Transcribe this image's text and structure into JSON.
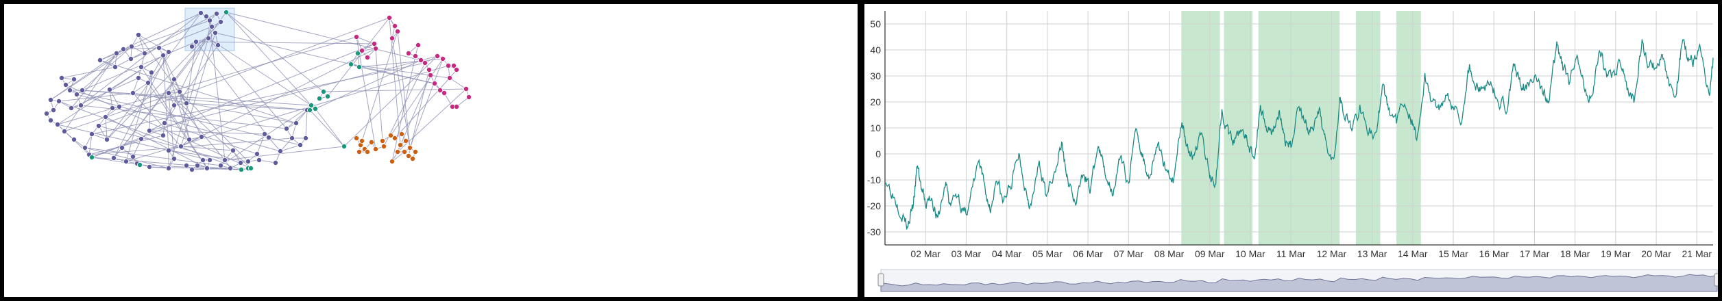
{
  "graph": {
    "colors": {
      "purple": "#5e5a9e",
      "green": "#16977a",
      "magenta": "#c8267f",
      "orange": "#cf5f0f",
      "edge": "#8c8fb3",
      "selection_fill": "#d6e8fb",
      "selection_stroke": "#a9c8ea"
    }
  },
  "chart_data": {
    "type": "line",
    "title": "",
    "xlabel": "",
    "ylabel": "",
    "ylim": [
      -35,
      55
    ],
    "x_range_days": [
      1.0,
      21.4
    ],
    "yticks": [
      -30,
      -20,
      -10,
      0,
      10,
      20,
      30,
      40,
      50
    ],
    "xticks": [
      {
        "day": 2,
        "label": "02 Mar"
      },
      {
        "day": 3,
        "label": "03 Mar"
      },
      {
        "day": 4,
        "label": "04 Mar"
      },
      {
        "day": 5,
        "label": "05 Mar"
      },
      {
        "day": 6,
        "label": "06 Mar"
      },
      {
        "day": 7,
        "label": "07 Mar"
      },
      {
        "day": 8,
        "label": "08 Mar"
      },
      {
        "day": 9,
        "label": "09 Mar"
      },
      {
        "day": 10,
        "label": "10 Mar"
      },
      {
        "day": 11,
        "label": "11 Mar"
      },
      {
        "day": 12,
        "label": "12 Mar"
      },
      {
        "day": 13,
        "label": "13 Mar"
      },
      {
        "day": 14,
        "label": "14 Mar"
      },
      {
        "day": 15,
        "label": "15 Mar"
      },
      {
        "day": 16,
        "label": "16 Mar"
      },
      {
        "day": 17,
        "label": "17 Mar"
      },
      {
        "day": 18,
        "label": "18 Mar"
      },
      {
        "day": 19,
        "label": "19 Mar"
      },
      {
        "day": 20,
        "label": "20 Mar"
      },
      {
        "day": 21,
        "label": "21 Mar"
      }
    ],
    "highlight_ranges": [
      [
        8.3,
        9.25
      ],
      [
        9.35,
        10.05
      ],
      [
        10.2,
        12.2
      ],
      [
        12.6,
        13.2
      ],
      [
        13.6,
        14.2
      ]
    ],
    "series": [
      {
        "color": "#1a8a86",
        "points": [
          [
            1.0,
            -9
          ],
          [
            1.2,
            -15
          ],
          [
            1.4,
            -22
          ],
          [
            1.55,
            -28
          ],
          [
            1.7,
            -20
          ],
          [
            1.8,
            -4
          ],
          [
            1.9,
            -14
          ],
          [
            2.0,
            -20
          ],
          [
            2.15,
            -16
          ],
          [
            2.3,
            -26
          ],
          [
            2.5,
            -11
          ],
          [
            2.6,
            -20
          ],
          [
            2.8,
            -15
          ],
          [
            2.95,
            -24
          ],
          [
            3.1,
            -18
          ],
          [
            3.3,
            -3
          ],
          [
            3.45,
            -13
          ],
          [
            3.6,
            -22
          ],
          [
            3.75,
            -8
          ],
          [
            3.9,
            -19
          ],
          [
            4.1,
            -12
          ],
          [
            4.3,
            0
          ],
          [
            4.45,
            -12
          ],
          [
            4.6,
            -20
          ],
          [
            4.8,
            -4
          ],
          [
            4.95,
            -15
          ],
          [
            5.2,
            -5
          ],
          [
            5.35,
            4
          ],
          [
            5.5,
            -10
          ],
          [
            5.7,
            -20
          ],
          [
            5.9,
            -6
          ],
          [
            6.05,
            -14
          ],
          [
            6.25,
            3
          ],
          [
            6.4,
            -6
          ],
          [
            6.6,
            -14
          ],
          [
            6.8,
            -2
          ],
          [
            7.0,
            -11
          ],
          [
            7.2,
            10
          ],
          [
            7.35,
            -1
          ],
          [
            7.5,
            -9
          ],
          [
            7.7,
            4
          ],
          [
            7.9,
            -4
          ],
          [
            8.1,
            -10
          ],
          [
            8.3,
            12
          ],
          [
            8.45,
            4
          ],
          [
            8.6,
            -2
          ],
          [
            8.8,
            8
          ],
          [
            9.0,
            -9
          ],
          [
            9.15,
            -10
          ],
          [
            9.3,
            18
          ],
          [
            9.45,
            8
          ],
          [
            9.6,
            4
          ],
          [
            9.8,
            11
          ],
          [
            9.95,
            3
          ],
          [
            10.1,
            -2
          ],
          [
            10.25,
            19
          ],
          [
            10.4,
            10
          ],
          [
            10.55,
            9
          ],
          [
            10.7,
            16
          ],
          [
            10.85,
            5
          ],
          [
            11.0,
            3
          ],
          [
            11.2,
            20
          ],
          [
            11.35,
            12
          ],
          [
            11.5,
            8
          ],
          [
            11.7,
            15
          ],
          [
            11.85,
            5
          ],
          [
            12.05,
            -2
          ],
          [
            12.2,
            22
          ],
          [
            12.35,
            15
          ],
          [
            12.5,
            9
          ],
          [
            12.7,
            18
          ],
          [
            12.9,
            10
          ],
          [
            13.1,
            6
          ],
          [
            13.25,
            27
          ],
          [
            13.4,
            17
          ],
          [
            13.6,
            12
          ],
          [
            13.8,
            21
          ],
          [
            14.0,
            12
          ],
          [
            14.1,
            6
          ],
          [
            14.3,
            29
          ],
          [
            14.45,
            21
          ],
          [
            14.65,
            17
          ],
          [
            14.85,
            25
          ],
          [
            15.0,
            18
          ],
          [
            15.2,
            14
          ],
          [
            15.4,
            34
          ],
          [
            15.55,
            26
          ],
          [
            15.7,
            24
          ],
          [
            15.9,
            29
          ],
          [
            16.1,
            21
          ],
          [
            16.3,
            18
          ],
          [
            16.5,
            35
          ],
          [
            16.65,
            27
          ],
          [
            16.8,
            25
          ],
          [
            17.0,
            31
          ],
          [
            17.2,
            24
          ],
          [
            17.35,
            20
          ],
          [
            17.55,
            41
          ],
          [
            17.7,
            33
          ],
          [
            17.85,
            27
          ],
          [
            18.05,
            35
          ],
          [
            18.2,
            27
          ],
          [
            18.4,
            22
          ],
          [
            18.6,
            40
          ],
          [
            18.75,
            32
          ],
          [
            18.9,
            29
          ],
          [
            19.1,
            35
          ],
          [
            19.3,
            25
          ],
          [
            19.45,
            21
          ],
          [
            19.65,
            43
          ],
          [
            19.8,
            35
          ],
          [
            19.95,
            33
          ],
          [
            20.15,
            38
          ],
          [
            20.3,
            27
          ],
          [
            20.5,
            24
          ],
          [
            20.65,
            46
          ],
          [
            20.8,
            37
          ],
          [
            20.95,
            36
          ],
          [
            21.1,
            40
          ],
          [
            21.3,
            22
          ],
          [
            21.4,
            37
          ]
        ]
      }
    ]
  }
}
